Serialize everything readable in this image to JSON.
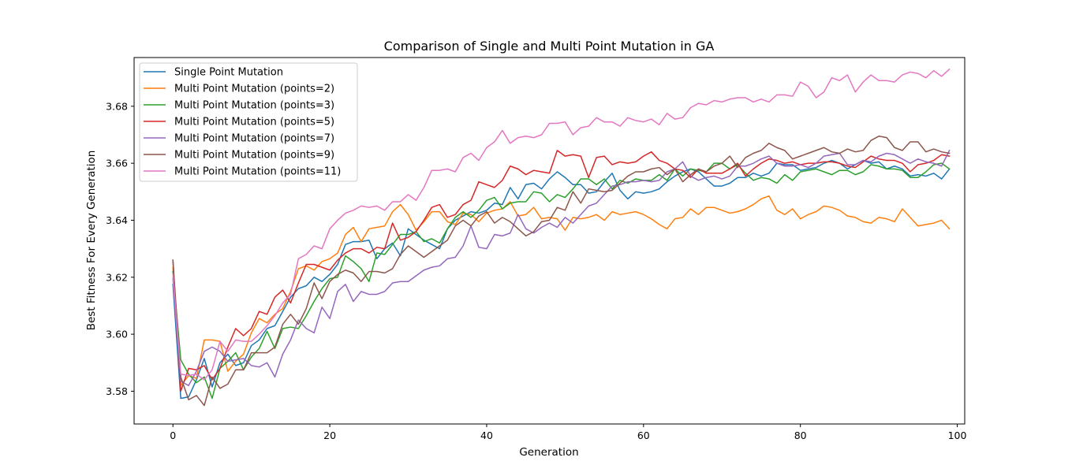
{
  "chart_data": {
    "type": "line",
    "title": "Comparison of Single and Multi Point Mutation in GA",
    "xlabel": "Generation",
    "ylabel": "Best Fitness For Every Generation",
    "xlim": [
      -4.95,
      100.95
    ],
    "ylim": [
      3.5685,
      3.6971
    ],
    "xticks": [
      0,
      20,
      40,
      60,
      80,
      100
    ],
    "yticks": [
      3.58,
      3.6,
      3.62,
      3.64,
      3.66,
      3.68
    ],
    "xtick_labels": [
      "0",
      "20",
      "40",
      "60",
      "80",
      "100"
    ],
    "ytick_labels": [
      "3.58",
      "3.60",
      "3.62",
      "3.64",
      "3.66",
      "3.68"
    ],
    "legend_position": "top-left",
    "grid": false,
    "x": [
      0,
      1,
      2,
      3,
      4,
      5,
      6,
      7,
      8,
      9,
      10,
      11,
      12,
      13,
      14,
      15,
      16,
      17,
      18,
      19,
      20,
      21,
      22,
      23,
      24,
      25,
      26,
      27,
      28,
      29,
      30,
      31,
      32,
      33,
      34,
      35,
      36,
      37,
      38,
      39,
      40,
      41,
      42,
      43,
      44,
      45,
      46,
      47,
      48,
      49,
      50,
      51,
      52,
      53,
      54,
      55,
      56,
      57,
      58,
      59,
      60,
      61,
      62,
      63,
      64,
      65,
      66,
      67,
      68,
      69,
      70,
      71,
      72,
      73,
      74,
      75,
      76,
      77,
      78,
      79,
      80,
      81,
      82,
      83,
      84,
      85,
      86,
      87,
      88,
      89,
      90,
      91,
      92,
      93,
      94,
      95,
      96,
      97,
      98,
      99
    ],
    "series": [
      {
        "name": "Single Point Mutation",
        "color": "#1f77b4",
        "values": [
          3.6175,
          3.5775,
          3.578,
          3.584,
          3.5915,
          3.5815,
          3.59,
          3.593,
          3.589,
          3.59,
          3.596,
          3.598,
          3.602,
          3.603,
          3.608,
          3.613,
          3.616,
          3.617,
          3.62,
          3.6185,
          3.621,
          3.6245,
          3.6315,
          3.6325,
          3.6325,
          3.633,
          3.6265,
          3.63,
          3.632,
          3.6275,
          3.637,
          3.635,
          3.633,
          3.6315,
          3.63,
          3.637,
          3.64,
          3.6415,
          3.643,
          3.6425,
          3.6435,
          3.646,
          3.6455,
          3.6515,
          3.6475,
          3.6525,
          3.653,
          3.651,
          3.6545,
          3.657,
          3.655,
          3.6525,
          3.6525,
          3.6495,
          3.65,
          3.6535,
          3.6565,
          3.6505,
          3.6475,
          3.65,
          3.6495,
          3.65,
          3.651,
          3.6535,
          3.6555,
          3.657,
          3.658,
          3.657,
          3.6545,
          3.652,
          3.652,
          3.653,
          3.655,
          3.655,
          3.6565,
          3.6555,
          3.6565,
          3.66,
          3.6595,
          3.6595,
          3.6575,
          3.658,
          3.6585,
          3.66,
          3.661,
          3.66,
          3.658,
          3.6595,
          3.661,
          3.66,
          3.6605,
          3.658,
          3.659,
          3.658,
          3.6555,
          3.656,
          3.6555,
          3.6565,
          3.6545,
          3.658
        ]
      },
      {
        "name": "Multi Point Mutation (points=2)",
        "color": "#ff7f0e",
        "values": [
          3.6235,
          3.582,
          3.5855,
          3.5845,
          3.598,
          3.598,
          3.5975,
          3.587,
          3.5905,
          3.593,
          3.6005,
          3.6055,
          3.604,
          3.607,
          3.609,
          3.615,
          3.623,
          3.624,
          3.6225,
          3.6255,
          3.6265,
          3.6285,
          3.635,
          3.6375,
          3.6325,
          3.637,
          3.6375,
          3.638,
          3.643,
          3.6455,
          3.642,
          3.6365,
          3.6395,
          3.643,
          3.643,
          3.6395,
          3.6385,
          3.6425,
          3.642,
          3.6395,
          3.6425,
          3.6435,
          3.644,
          3.6465,
          3.6415,
          3.642,
          3.6445,
          3.6405,
          3.641,
          3.6405,
          3.6365,
          3.641,
          3.6405,
          3.641,
          3.642,
          3.64,
          3.643,
          3.642,
          3.6425,
          3.643,
          3.642,
          3.6405,
          3.6385,
          3.637,
          3.6405,
          3.641,
          3.644,
          3.642,
          3.6445,
          3.6445,
          3.6435,
          3.6425,
          3.643,
          3.644,
          3.6455,
          3.6475,
          3.6485,
          3.6435,
          3.642,
          3.644,
          3.6405,
          3.642,
          3.643,
          3.645,
          3.6445,
          3.6435,
          3.6415,
          3.641,
          3.6395,
          3.639,
          3.641,
          3.6405,
          3.6395,
          3.644,
          3.641,
          3.638,
          3.6385,
          3.639,
          3.64,
          3.637
        ]
      },
      {
        "name": "Multi Point Mutation (points=3)",
        "color": "#2ca02c",
        "values": [
          3.622,
          3.591,
          3.586,
          3.583,
          3.585,
          3.5775,
          3.588,
          3.5905,
          3.5935,
          3.5875,
          3.592,
          3.595,
          3.601,
          3.595,
          3.602,
          3.6025,
          3.602,
          3.6065,
          3.6115,
          3.616,
          3.6195,
          3.62,
          3.6275,
          3.6255,
          3.623,
          3.6185,
          3.6285,
          3.628,
          3.6315,
          3.635,
          3.635,
          3.636,
          3.6325,
          3.6335,
          3.632,
          3.637,
          3.641,
          3.643,
          3.641,
          3.6435,
          3.647,
          3.648,
          3.644,
          3.646,
          3.6465,
          3.6465,
          3.65,
          3.6495,
          3.6465,
          3.649,
          3.648,
          3.651,
          3.6545,
          3.6545,
          3.6525,
          3.6545,
          3.651,
          3.654,
          3.653,
          3.6545,
          3.654,
          3.654,
          3.656,
          3.654,
          3.658,
          3.6555,
          3.658,
          3.6575,
          3.657,
          3.66,
          3.66,
          3.658,
          3.6595,
          3.6565,
          3.654,
          3.655,
          3.6545,
          3.653,
          3.656,
          3.654,
          3.657,
          3.6575,
          3.658,
          3.657,
          3.656,
          3.6575,
          3.6575,
          3.656,
          3.657,
          3.6595,
          3.659,
          3.658,
          3.658,
          3.6575,
          3.655,
          3.655,
          3.657,
          3.6595,
          3.66,
          3.658
        ]
      },
      {
        "name": "Multi Point Mutation (points=5)",
        "color": "#d62728",
        "values": [
          3.626,
          3.58,
          3.588,
          3.5875,
          3.589,
          3.584,
          3.588,
          3.5955,
          3.602,
          3.5995,
          3.602,
          3.608,
          3.607,
          3.613,
          3.6155,
          3.611,
          3.618,
          3.6245,
          3.6245,
          3.6235,
          3.6225,
          3.626,
          3.6285,
          3.63,
          3.63,
          3.6285,
          3.6305,
          3.63,
          3.639,
          3.633,
          3.634,
          3.636,
          3.64,
          3.6445,
          3.6455,
          3.641,
          3.642,
          3.6455,
          3.647,
          3.6535,
          3.6525,
          3.6515,
          3.654,
          3.659,
          3.658,
          3.656,
          3.6575,
          3.657,
          3.6565,
          3.6645,
          3.6625,
          3.663,
          3.6625,
          3.655,
          3.662,
          3.6625,
          3.6595,
          3.6605,
          3.66,
          3.6605,
          3.6625,
          3.664,
          3.661,
          3.66,
          3.658,
          3.6575,
          3.655,
          3.658,
          3.6565,
          3.6565,
          3.6565,
          3.658,
          3.66,
          3.6555,
          3.658,
          3.66,
          3.6615,
          3.661,
          3.66,
          3.6605,
          3.6595,
          3.66,
          3.66,
          3.6605,
          3.6605,
          3.66,
          3.659,
          3.6585,
          3.6605,
          3.6625,
          3.6615,
          3.661,
          3.661,
          3.66,
          3.657,
          3.6595,
          3.66,
          3.661,
          3.663,
          3.6625
        ]
      },
      {
        "name": "Multi Point Mutation (points=7)",
        "color": "#9467bd",
        "values": [
          3.6195,
          3.5835,
          3.582,
          3.587,
          3.594,
          3.5955,
          3.594,
          3.5905,
          3.591,
          3.5915,
          3.589,
          3.5885,
          3.59,
          3.585,
          3.593,
          3.598,
          3.605,
          3.602,
          3.6005,
          3.6095,
          3.6055,
          3.615,
          3.6175,
          3.6115,
          3.615,
          3.614,
          3.614,
          3.615,
          3.618,
          3.6185,
          3.6185,
          3.6205,
          3.6225,
          3.6235,
          3.624,
          3.6265,
          3.627,
          3.631,
          3.638,
          3.6305,
          3.63,
          3.635,
          3.6345,
          3.6355,
          3.642,
          3.637,
          3.6355,
          3.6375,
          3.639,
          3.6375,
          3.641,
          3.639,
          3.642,
          3.645,
          3.646,
          3.649,
          3.652,
          3.6525,
          3.6535,
          3.6535,
          3.654,
          3.6535,
          3.654,
          3.657,
          3.658,
          3.6605,
          3.6555,
          3.654,
          3.655,
          3.6555,
          3.6545,
          3.6555,
          3.659,
          3.659,
          3.66,
          3.6615,
          3.6625,
          3.66,
          3.659,
          3.659,
          3.6595,
          3.6585,
          3.66,
          3.6625,
          3.663,
          3.6635,
          3.6595,
          3.6595,
          3.661,
          3.6605,
          3.6625,
          3.6635,
          3.663,
          3.6615,
          3.66,
          3.6615,
          3.6605,
          3.66,
          3.659,
          3.6645
        ]
      },
      {
        "name": "Multi Point Mutation (points=9)",
        "color": "#8c564b",
        "values": [
          3.626,
          3.585,
          3.577,
          3.5785,
          3.575,
          3.585,
          3.581,
          3.5825,
          3.5875,
          3.5875,
          3.5935,
          3.5935,
          3.5935,
          3.5955,
          3.6035,
          3.607,
          3.6035,
          3.609,
          3.618,
          3.6125,
          3.6185,
          3.621,
          3.6225,
          3.6215,
          3.6185,
          3.622,
          3.622,
          3.6215,
          3.623,
          3.628,
          3.631,
          3.629,
          3.627,
          3.629,
          3.631,
          3.633,
          3.638,
          3.64,
          3.638,
          3.6415,
          3.643,
          3.639,
          3.641,
          3.6395,
          3.637,
          3.6345,
          3.636,
          3.6395,
          3.64,
          3.6445,
          3.6435,
          3.65,
          3.646,
          3.651,
          3.6505,
          3.65,
          3.6505,
          3.653,
          3.6555,
          3.657,
          3.657,
          3.658,
          3.6585,
          3.656,
          3.658,
          3.6535,
          3.656,
          3.658,
          3.657,
          3.659,
          3.66,
          3.6625,
          3.6585,
          3.662,
          3.6635,
          3.6645,
          3.667,
          3.6655,
          3.6645,
          3.6615,
          3.6625,
          3.6635,
          3.6645,
          3.6655,
          3.664,
          3.6635,
          3.665,
          3.664,
          3.6645,
          3.668,
          3.6695,
          3.669,
          3.6655,
          3.6645,
          3.6675,
          3.6675,
          3.664,
          3.665,
          3.664,
          3.6635
        ]
      },
      {
        "name": "Multi Point Mutation (points=11)",
        "color": "#e377c2",
        "values": [
          3.621,
          3.586,
          3.5855,
          3.586,
          3.584,
          3.5875,
          3.5975,
          3.594,
          3.598,
          3.5975,
          3.5975,
          3.6,
          3.603,
          3.6065,
          3.611,
          3.614,
          3.6265,
          3.628,
          3.631,
          3.63,
          3.637,
          3.64,
          3.6425,
          3.6435,
          3.645,
          3.6445,
          3.645,
          3.6435,
          3.6465,
          3.6465,
          3.649,
          3.647,
          3.6515,
          3.6575,
          3.6575,
          3.658,
          3.657,
          3.662,
          3.6635,
          3.661,
          3.6655,
          3.6675,
          3.6715,
          3.667,
          3.669,
          3.6695,
          3.669,
          3.67,
          3.674,
          3.674,
          3.6745,
          3.67,
          3.6725,
          3.673,
          3.676,
          3.6745,
          3.6745,
          3.673,
          3.676,
          3.675,
          3.6745,
          3.6755,
          3.6735,
          3.6775,
          3.6755,
          3.676,
          3.6795,
          3.681,
          3.6805,
          3.682,
          3.6815,
          3.6825,
          3.683,
          3.683,
          3.6815,
          3.6825,
          3.6815,
          3.684,
          3.684,
          3.6835,
          3.6885,
          3.687,
          3.683,
          3.685,
          3.69,
          3.689,
          3.691,
          3.685,
          3.6885,
          3.691,
          3.689,
          3.689,
          3.6885,
          3.691,
          3.692,
          3.6915,
          3.69,
          3.6925,
          3.6905,
          3.693
        ]
      }
    ]
  }
}
